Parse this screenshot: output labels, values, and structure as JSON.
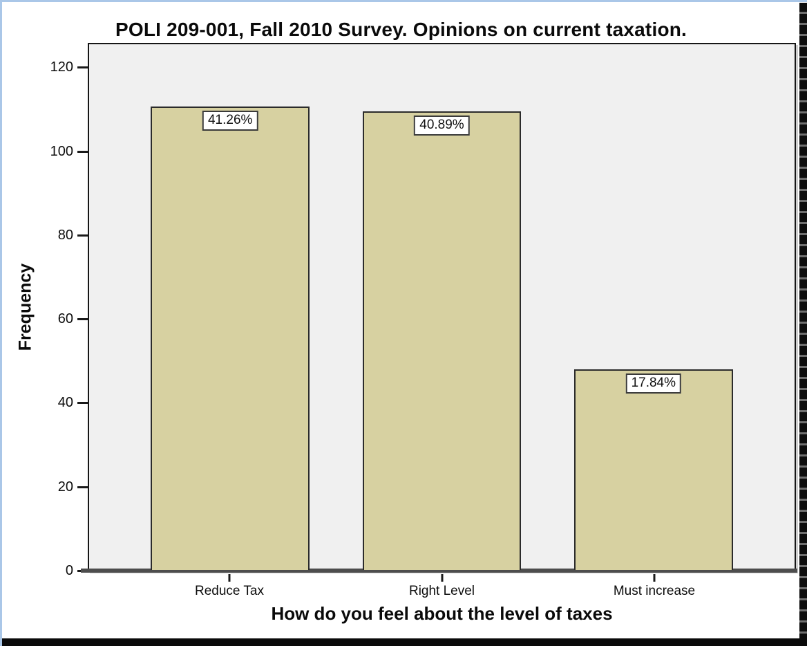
{
  "chart_data": {
    "type": "bar",
    "title": "POLI 209-001, Fall 2010 Survey. Opinions on current taxation.",
    "xlabel": "How do you feel about the level of taxes",
    "ylabel": "Frequency",
    "categories": [
      "Reduce Tax",
      "Right Level",
      "Must increase"
    ],
    "values": [
      111,
      110,
      48
    ],
    "percent_labels": [
      "41.26%",
      "40.89%",
      "17.84%"
    ],
    "yticks": [
      0,
      20,
      40,
      60,
      80,
      100,
      120
    ],
    "ylim": [
      0,
      126
    ],
    "grid": false,
    "legend_position": "none",
    "colors": {
      "bar_fill": "#d7d1a1",
      "bar_border": "#2b2b2b",
      "plot_background": "#f0f0f0",
      "frame_border": "#161616",
      "baseline_gray": "#4d4d4d",
      "selection_border_blue": "#aac7e8",
      "edge_black": "#0a0a0a"
    }
  }
}
